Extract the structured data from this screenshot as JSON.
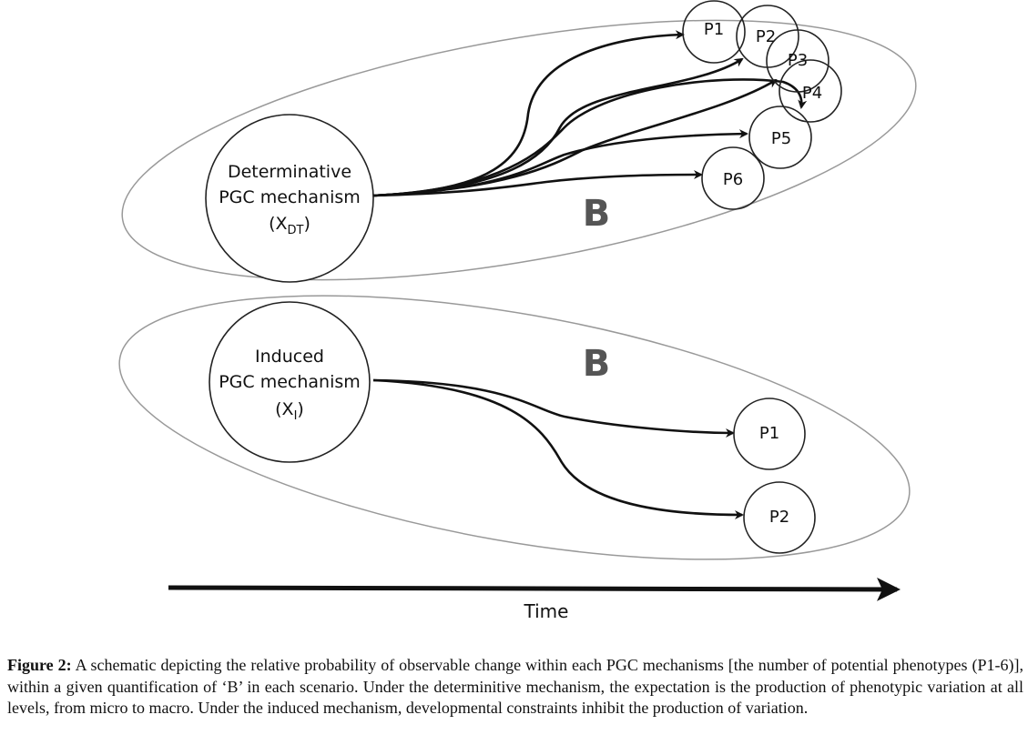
{
  "top": {
    "node": {
      "lines": [
        "Determinative",
        "PGC mechanism"
      ],
      "symbol": [
        "(X",
        "DT",
        ")"
      ]
    },
    "phenotypes": [
      "P1",
      "P2",
      "P3",
      "P4",
      "P5",
      "P6"
    ],
    "b_label": "B"
  },
  "bottom": {
    "node": {
      "lines": [
        "Induced",
        "PGC mechanism"
      ],
      "symbol": [
        "(X",
        "I",
        ")"
      ]
    },
    "phenotypes": [
      "P1",
      "P2"
    ],
    "b_label": "B"
  },
  "axis_label": "Time",
  "caption": {
    "label": "Figure 2:",
    "text": "A schematic depicting the relative probability of observable change within each PGC mechanisms [the number of potential phenotypes (P1-6)], within a given quantification of ‘B’ in each scenario. Under the determinitive mechanism, the expectation is the production of phenotypic variation at all levels, from micro to macro. Under the induced mechanism, developmental constraints inhibit the production of variation."
  }
}
